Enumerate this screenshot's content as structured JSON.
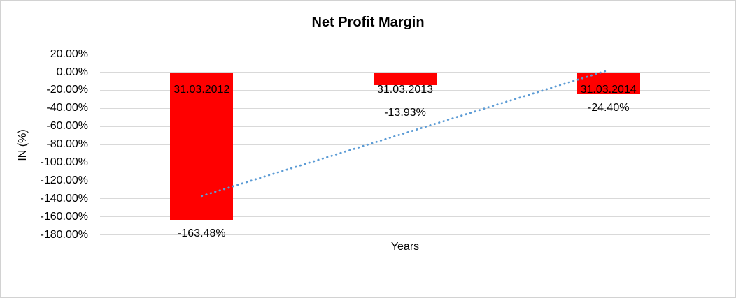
{
  "chart": {
    "title": "Net Profit Margin",
    "x_axis_title": "Years",
    "y_axis_title": "IN (%)"
  },
  "chart_data": {
    "type": "bar",
    "title": "Net Profit Margin",
    "xlabel": "Years",
    "ylabel": "IN (%)",
    "categories": [
      "31.03.2012",
      "31.03.2013",
      "31.03.2014"
    ],
    "values": [
      -163.48,
      -13.93,
      -24.4
    ],
    "data_labels": [
      "-163.48%",
      "-13.93%",
      "-24.40%"
    ],
    "bar_color": "#FF0000",
    "ylim": [
      -180,
      20
    ],
    "y_ticks": [
      "20.00%",
      "0.00%",
      "-20.00%",
      "-40.00%",
      "-60.00%",
      "-80.00%",
      "-100.00%",
      "-120.00%",
      "-140.00%",
      "-160.00%",
      "-180.00%"
    ],
    "y_tick_values": [
      20,
      0,
      -20,
      -40,
      -60,
      -80,
      -100,
      -120,
      -140,
      -160,
      -180
    ],
    "grid": true,
    "legend": "none",
    "trendline": {
      "type": "linear",
      "style": "dotted",
      "color": "#5B9BD5"
    }
  },
  "colors": {
    "gridline": "#D9D9D9",
    "text": "#000000",
    "frame_border": "#D2D2D2",
    "background": "#FFFFFF"
  }
}
